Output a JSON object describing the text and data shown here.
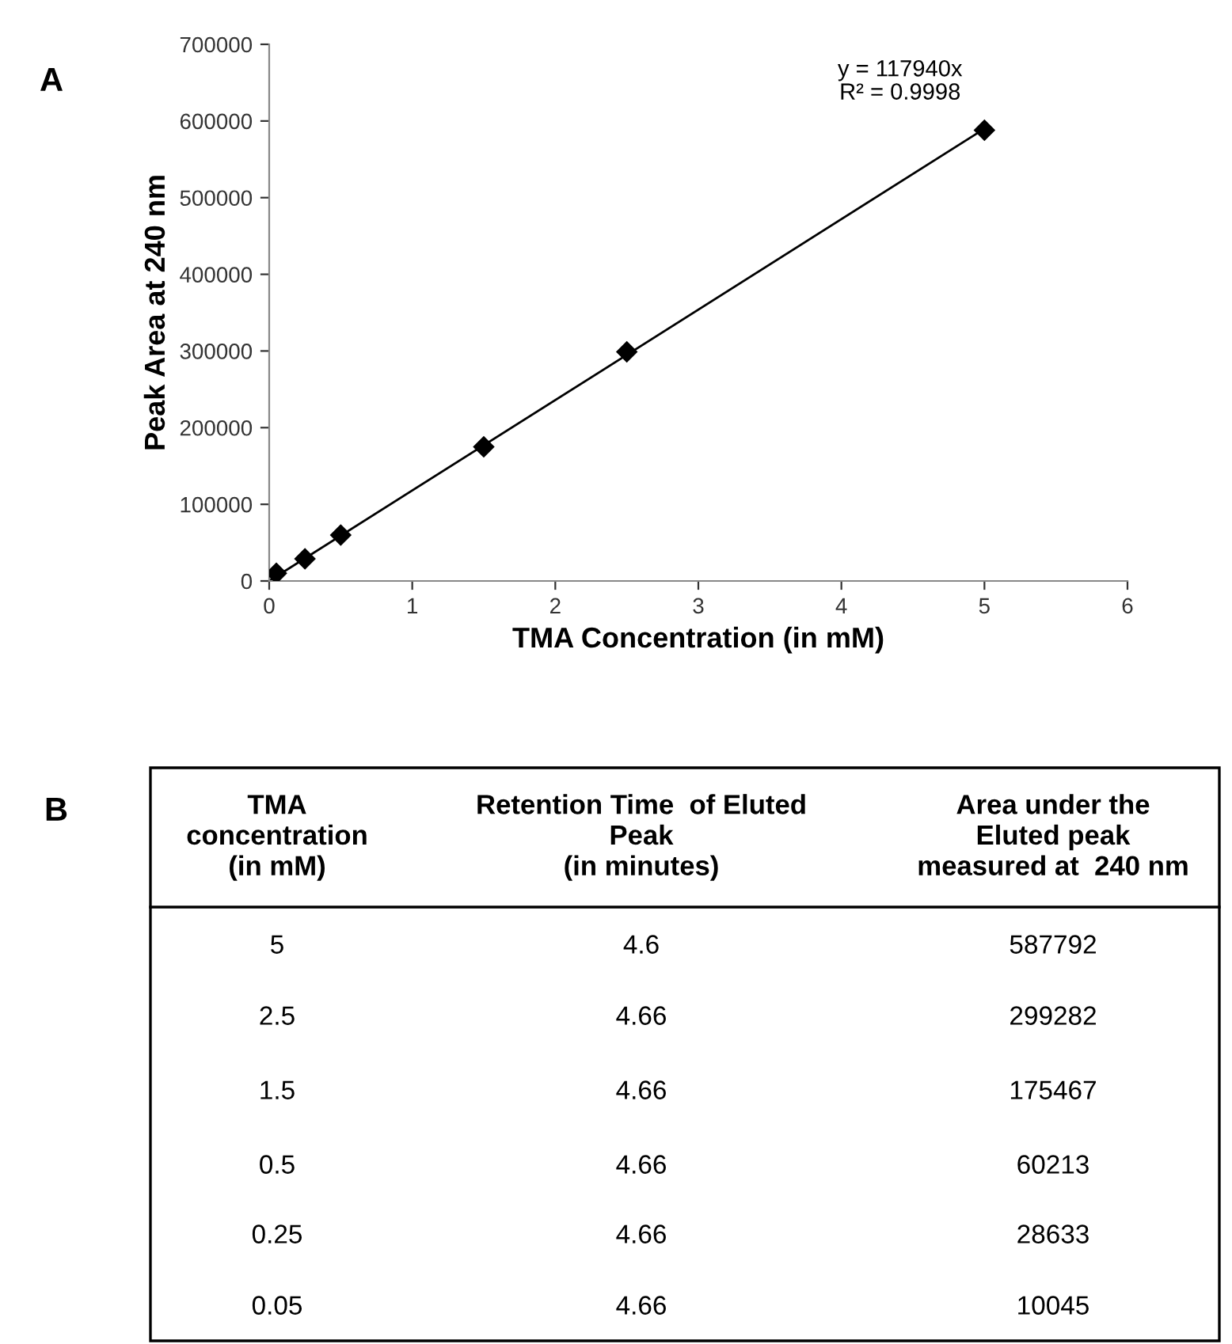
{
  "chart_data": {
    "type": "scatter",
    "xlabel": "TMA Concentration (in mM)",
    "ylabel": "Peak Area at 240 nm",
    "xlim": [
      0,
      6
    ],
    "xticks": [
      0,
      1,
      2,
      3,
      4,
      5,
      6
    ],
    "ylim": [
      0,
      700000
    ],
    "yticks": [
      0,
      100000,
      200000,
      300000,
      400000,
      500000,
      600000,
      700000
    ],
    "grid": false,
    "legend": false,
    "marker": "diamond",
    "series": [
      {
        "color": "#000000",
        "x": [
          5,
          2.5,
          1.5,
          0.5,
          0.25,
          0.05
        ],
        "values": [
          588000,
          299000,
          175000,
          60000,
          29000,
          10000
        ]
      },
      {
        "type": "line",
        "color": "#000000",
        "line_style": "solid",
        "marker": "none",
        "x": [
          0,
          5
        ],
        "values": [
          0,
          590000
        ]
      }
    ],
    "annotations": [
      "A",
      "B",
      "y = 117940x\nR² = 0.9998",
      "TMA\nconcentration\n(in mM)",
      "Retention Time  of Eluted\nPeak\n(in minutes)",
      "Area under the\nEluted peak\nmeasured at  240 nm",
      "5",
      "4.6",
      "587792",
      "2.5",
      "4.66",
      "299282",
      "1.5",
      "4.66",
      "175467",
      "0.5",
      "4.66",
      "60213",
      "0.25",
      "4.66",
      "28633",
      "0.05",
      "4.66",
      "10045"
    ]
  }
}
